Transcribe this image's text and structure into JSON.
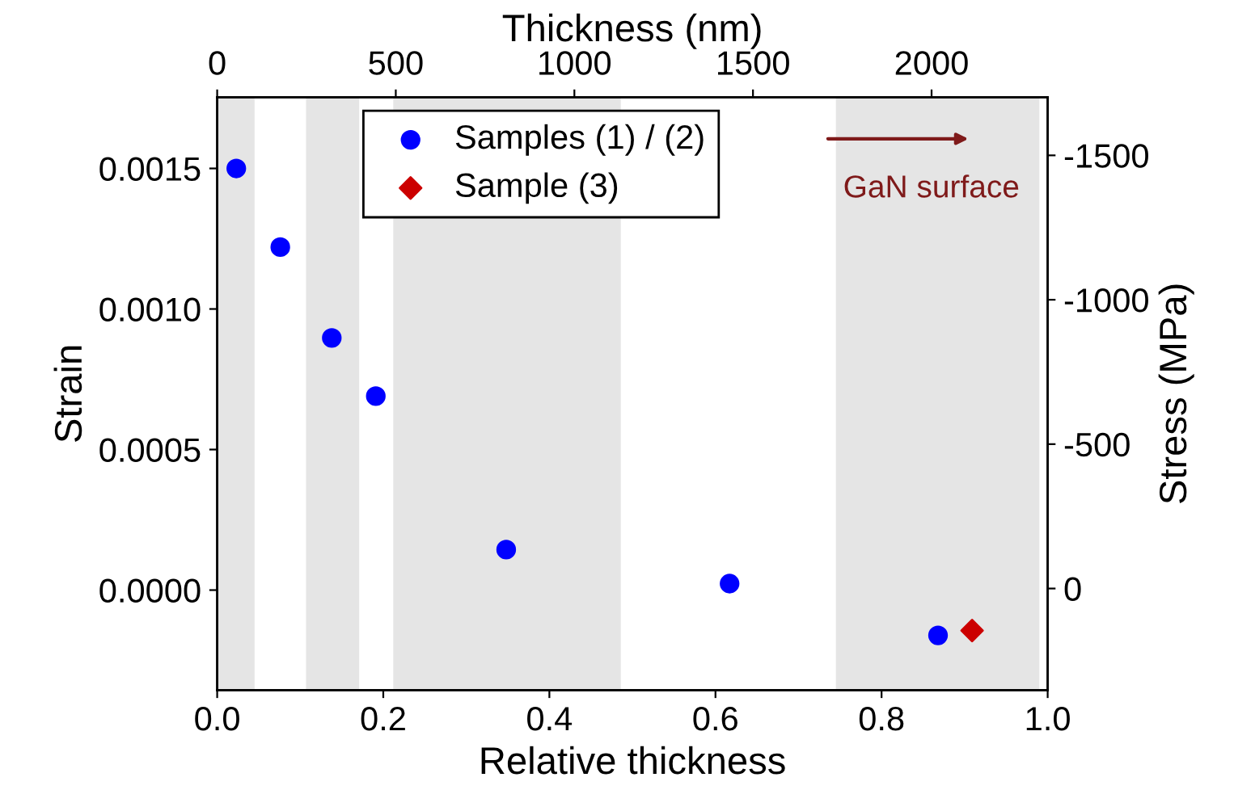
{
  "chart_data": {
    "type": "scatter",
    "xlabel": "Relative thickness",
    "ylabel": "Strain",
    "y2label": "Stress (MPa)",
    "x2label": "Thickness (nm)",
    "xlim": [
      0.0,
      1.0
    ],
    "xticks": [
      {
        "value": 0.0,
        "label": "0.0"
      },
      0.2,
      0.4,
      0.6,
      0.8,
      {
        "value": 1.0,
        "label": "1.0"
      }
    ],
    "ylim": [
      -0.000356,
      0.001753
    ],
    "yticks": [
      {
        "value": 0.0,
        "label": "0.0000"
      },
      {
        "value": 0.0005,
        "label": "0.0005"
      },
      {
        "value": 0.001,
        "label": "0.0010"
      },
      {
        "value": 0.0015,
        "label": "0.0015"
      }
    ],
    "y2lim": [
      352,
      -1701
    ],
    "y2ticks": [
      0,
      -500,
      -1000,
      -1500
    ],
    "x2lim": [
      0,
      2325
    ],
    "x2ticks": [
      0,
      500,
      1000,
      1500,
      2000
    ],
    "grid": false,
    "legend": "top",
    "series": [
      {
        "name": "Samples (1) / (2)",
        "color": "#0000ff",
        "marker": "circle",
        "x": [
          0.023,
          0.076,
          0.138,
          0.191,
          0.348,
          0.617,
          0.868
        ],
        "values": [
          0.0015,
          0.00122,
          0.000897,
          0.00069,
          0.000144,
          2.3e-05,
          -0.000161
        ]
      },
      {
        "name": "Sample (3)",
        "color": "#cc0000",
        "marker": "diamond",
        "x": [
          0.909
        ],
        "values": [
          -0.000144
        ]
      }
    ],
    "bands": [
      {
        "axis": "x",
        "from": 0.0,
        "to": 0.045,
        "color": "#e5e5e5"
      },
      {
        "axis": "x",
        "from": 0.107,
        "to": 0.171,
        "color": "#e5e5e5"
      },
      {
        "axis": "x",
        "from": 0.212,
        "to": 0.486,
        "color": "#e5e5e5"
      },
      {
        "axis": "x",
        "from": 0.745,
        "to": 0.99,
        "color": "#e5e5e5"
      }
    ],
    "annotations": [
      "GaN surface"
    ]
  }
}
